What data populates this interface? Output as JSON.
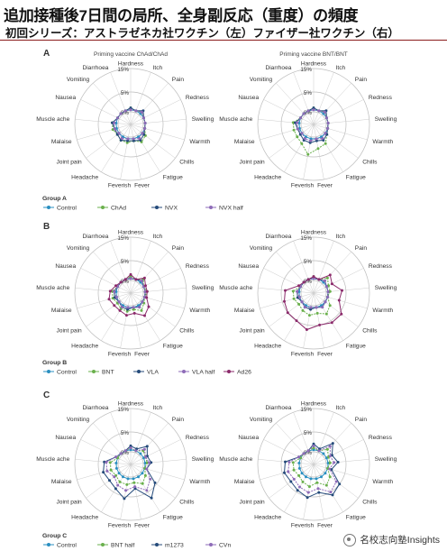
{
  "header": {
    "title": "追加接種後7日間の局所、全身副反応（重度）の頻度",
    "subtitle": "初回シリーズ：アストラゼネカ社ワクチン（左）ファイザー社ワクチン（右）"
  },
  "watermark": {
    "text": "名校志向塾Insights"
  },
  "axes": [
    "Hardness",
    "Itch",
    "Pain",
    "Redness",
    "Swelling",
    "Warmth",
    "Chills",
    "Fatigue",
    "Fever",
    "Feverish",
    "Headache",
    "Joint pain",
    "Malaise",
    "Muscle ache",
    "Nausea",
    "Vomiting",
    "Diarrhoea"
  ],
  "rings": [
    "0%",
    "5%",
    "15%"
  ],
  "colors": {
    "Control": "#2a8fc0",
    "ChAd": "#6ab04c",
    "NVX": "#244a7a",
    "NVX half": "#8e6bb8",
    "BNT": "#6ab04c",
    "VLA": "#244a7a",
    "VLA half": "#8e6bb8",
    "Ad26": "#8b2a6b",
    "BNT half": "#6ab04c",
    "m1273": "#244a7a",
    "CVn": "#8e6bb8"
  },
  "chart_data": [
    {
      "type": "radar",
      "panel": "A",
      "title": "Priming vaccine ChAd/ChAd",
      "unit": "%",
      "rmax": 15,
      "series": [
        {
          "name": "Control",
          "values": [
            0.5,
            0.5,
            0.5,
            0.5,
            0.5,
            0.5,
            0.5,
            0.5,
            0.5,
            0.5,
            0.5,
            0.5,
            0.5,
            0.5,
            0.5,
            0.5,
            0.5
          ]
        },
        {
          "name": "ChAd",
          "values": [
            1,
            0.5,
            1,
            0.5,
            0.5,
            0.5,
            1.5,
            2,
            1,
            1.5,
            1.5,
            1,
            1.5,
            1.5,
            0.5,
            0.5,
            0.5
          ]
        },
        {
          "name": "NVX",
          "values": [
            1,
            0.5,
            1.5,
            0.5,
            0.5,
            0.5,
            1,
            1.5,
            1,
            1,
            1.5,
            1,
            1,
            1.5,
            0.5,
            0.5,
            0.5
          ]
        },
        {
          "name": "NVX half",
          "values": [
            0.5,
            0.5,
            1,
            0.5,
            0.5,
            0.5,
            0.5,
            1,
            0.5,
            0.5,
            1,
            0.5,
            1,
            1,
            0.5,
            0.5,
            0.5
          ]
        }
      ]
    },
    {
      "type": "radar",
      "panel": "A",
      "title": "Priming vaccine BNT/BNT",
      "unit": "%",
      "rmax": 15,
      "series": [
        {
          "name": "Control",
          "values": [
            0.5,
            0.5,
            0.5,
            0.5,
            0.5,
            0.5,
            0.5,
            0.5,
            0.5,
            0.5,
            0.5,
            0.5,
            0.5,
            0.5,
            0.5,
            0.5,
            0.5
          ]
        },
        {
          "name": "ChAd",
          "values": [
            1,
            0.5,
            1,
            0.5,
            0.5,
            0.5,
            1,
            2.5,
            3,
            4.5,
            2.5,
            2,
            2,
            2,
            0.5,
            0.5,
            0.5
          ]
        },
        {
          "name": "NVX",
          "values": [
            1,
            0.5,
            1.5,
            0.5,
            0.5,
            0.5,
            1,
            1.5,
            1,
            1.5,
            1.5,
            1,
            1,
            1.5,
            0.5,
            0.5,
            0.5
          ]
        },
        {
          "name": "NVX half",
          "values": [
            0.5,
            0.5,
            1,
            0.5,
            0.5,
            0.5,
            0.5,
            1,
            0.5,
            1,
            1,
            0.5,
            1,
            1,
            0.5,
            0.5,
            0.5
          ]
        }
      ]
    },
    {
      "type": "radar",
      "panel": "B",
      "title": "",
      "unit": "%",
      "rmax": 15,
      "series": [
        {
          "name": "Control",
          "values": [
            0.5,
            0.5,
            0.5,
            0.5,
            0.5,
            0.5,
            0.5,
            0.5,
            0.5,
            0.5,
            0.5,
            0.5,
            0.5,
            0.5,
            0.5,
            0.5,
            0.5
          ]
        },
        {
          "name": "BNT",
          "values": [
            1,
            0.5,
            1.5,
            0.5,
            1,
            0.5,
            1,
            2,
            1,
            1.5,
            1.5,
            1,
            1.5,
            1.5,
            0.5,
            0.5,
            0.5
          ]
        },
        {
          "name": "VLA",
          "values": [
            0.5,
            0.5,
            1,
            0.5,
            0.5,
            0.5,
            0.5,
            1,
            0.5,
            1,
            1,
            0.5,
            1,
            1,
            0.5,
            0.5,
            0.5
          ]
        },
        {
          "name": "VLA half",
          "values": [
            0.5,
            0.5,
            1,
            0.5,
            0.5,
            0.5,
            0.5,
            1,
            0.5,
            0.5,
            1,
            0.5,
            0.5,
            1,
            0.5,
            0.5,
            0.5
          ]
        },
        {
          "name": "Ad26",
          "values": [
            1.5,
            0.5,
            2,
            1,
            1,
            1,
            2.5,
            3.5,
            2,
            2.5,
            2,
            2,
            2.5,
            2,
            1,
            0.5,
            0.5
          ]
        }
      ]
    },
    {
      "type": "radar",
      "panel": "B",
      "title": "",
      "unit": "%",
      "rmax": 15,
      "series": [
        {
          "name": "Control",
          "values": [
            0.5,
            0.5,
            0.5,
            0.5,
            0.5,
            0.5,
            0.5,
            0.5,
            0.5,
            0.5,
            0.5,
            0.5,
            0.5,
            0.5,
            0.5,
            0.5,
            0.5
          ]
        },
        {
          "name": "BNT",
          "values": [
            1,
            0.5,
            2,
            1,
            1,
            0.5,
            2,
            3,
            2,
            2.5,
            2,
            1.5,
            2,
            2,
            0.5,
            0.5,
            0.5
          ]
        },
        {
          "name": "VLA",
          "values": [
            0.5,
            0.5,
            1,
            0.5,
            0.5,
            0.5,
            0.5,
            1,
            0.5,
            1,
            1,
            0.5,
            1,
            1,
            0.5,
            0.5,
            0.5
          ]
        },
        {
          "name": "VLA half",
          "values": [
            0.5,
            0.5,
            1,
            0.5,
            0.5,
            0.5,
            0.5,
            1,
            0.5,
            0.5,
            1,
            0.5,
            0.5,
            1,
            0.5,
            0.5,
            0.5
          ]
        },
        {
          "name": "Ad26",
          "values": [
            1,
            0.5,
            3,
            2,
            4,
            3.5,
            6,
            6,
            5,
            7,
            5,
            5,
            4.5,
            4,
            1,
            0.5,
            0.5
          ]
        }
      ]
    },
    {
      "type": "radar",
      "panel": "C",
      "title": "",
      "unit": "%",
      "rmax": 15,
      "series": [
        {
          "name": "Control",
          "values": [
            0.5,
            0.5,
            0.5,
            0.5,
            0.5,
            0.5,
            0.5,
            0.5,
            0.5,
            0.5,
            0.5,
            0.5,
            0.5,
            0.5,
            0.5,
            0.5,
            0.5
          ]
        },
        {
          "name": "BNT half",
          "values": [
            1,
            0.5,
            1.5,
            1,
            1,
            0.5,
            1.5,
            2.5,
            1.5,
            2,
            2,
            1.5,
            2,
            2,
            0.5,
            0.5,
            0.5
          ]
        },
        {
          "name": "m1273",
          "values": [
            1.5,
            1,
            3,
            1.5,
            2,
            1,
            4.5,
            8,
            3,
            6,
            4,
            3.5,
            4,
            3.5,
            1,
            0.5,
            0.5
          ]
        },
        {
          "name": "CVn",
          "values": [
            1,
            0.5,
            2,
            1,
            1.5,
            1,
            3,
            4.5,
            2.5,
            3.5,
            3,
            2,
            3,
            3,
            1,
            0.5,
            0.5
          ]
        }
      ]
    },
    {
      "type": "radar",
      "panel": "C",
      "title": "",
      "unit": "%",
      "rmax": 15,
      "series": [
        {
          "name": "Control",
          "values": [
            0.5,
            0.5,
            0.5,
            0.5,
            0.5,
            0.5,
            0.5,
            0.5,
            0.5,
            0.5,
            0.5,
            0.5,
            0.5,
            0.5,
            0.5,
            0.5,
            0.5
          ]
        },
        {
          "name": "BNT half",
          "values": [
            1,
            0.5,
            2,
            1,
            1,
            0.5,
            2,
            3,
            1.5,
            2.5,
            2,
            1.5,
            2,
            2,
            0.5,
            0.5,
            0.5
          ]
        },
        {
          "name": "m1273",
          "values": [
            2,
            1,
            4,
            2,
            3,
            1.5,
            5,
            6.5,
            4,
            5.5,
            4.5,
            4,
            4.5,
            4,
            1,
            0.5,
            0.5
          ]
        },
        {
          "name": "CVn",
          "values": [
            1.5,
            0.5,
            3,
            1.5,
            2,
            1,
            4,
            5,
            3,
            4,
            3.5,
            3,
            3.5,
            3,
            1,
            0.5,
            0.5
          ]
        }
      ]
    }
  ],
  "legends": [
    {
      "label": "Group A",
      "items": [
        "Control",
        "ChAd",
        "NVX",
        "NVX half"
      ]
    },
    {
      "label": "Group B",
      "items": [
        "Control",
        "BNT",
        "VLA",
        "VLA half",
        "Ad26"
      ]
    },
    {
      "label": "Group C",
      "items": [
        "Control",
        "BNT half",
        "m1273",
        "CVn"
      ]
    }
  ],
  "panel_letters": [
    "A",
    "B",
    "C"
  ]
}
